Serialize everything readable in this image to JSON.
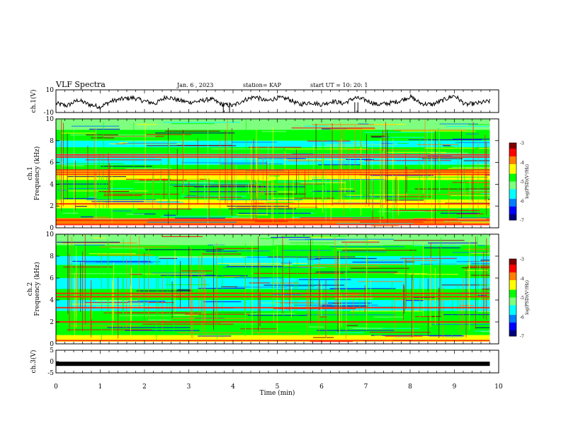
{
  "header": {
    "title": "VLF Spectra",
    "date": "Jan. 6 , 2023",
    "station": "station= KAP",
    "start_ut": "start UT =  10: 20: 1"
  },
  "colors": {
    "spectrum_scale": [
      "#00007f",
      "#0000ff",
      "#007fff",
      "#00ffff",
      "#7fff7f",
      "#00ff00",
      "#ffff00",
      "#ff7f00",
      "#ff0000",
      "#7f0000"
    ]
  },
  "chart_data": [
    {
      "type": "line",
      "name": "ch1-waveform",
      "ylabel": "ch.1(V)",
      "ylim": [
        -10,
        10
      ],
      "yticks": [
        "10",
        "-10"
      ],
      "description_series": "ch.1 voltage trace over time (min)",
      "x": [
        0.0,
        0.25,
        0.5,
        0.75,
        1.0,
        1.25,
        1.5,
        1.75,
        2.0,
        2.25,
        2.5,
        2.75,
        3.0,
        3.25,
        3.5,
        3.75,
        4.0,
        4.25,
        4.5,
        4.75,
        5.0,
        5.25,
        5.5,
        5.75,
        6.0,
        6.25,
        6.5,
        6.75,
        7.0,
        7.25,
        7.5,
        7.75,
        8.0,
        8.25,
        8.5,
        8.75,
        9.0,
        9.25,
        9.5,
        9.8
      ],
      "values": [
        -2,
        -4,
        1,
        -3,
        -5,
        0,
        2,
        3,
        0,
        -2,
        4,
        1,
        -1,
        0,
        2,
        -3,
        -4,
        1,
        4,
        0,
        3,
        2,
        -3,
        -1,
        -3,
        0,
        -2,
        3,
        1,
        -3,
        -2,
        0,
        4,
        -2,
        -3,
        1,
        5,
        -3,
        -2,
        0
      ]
    },
    {
      "type": "heatmap",
      "name": "ch1-spectrogram",
      "ylabel": "ch.1\nFrequency (kHz)",
      "ylim": [
        0,
        10
      ],
      "yticks": [
        "0",
        "2",
        "4",
        "6",
        "8",
        "10"
      ],
      "colorbar": {
        "label": "log(PSD)(V²/Hz)",
        "range": [
          -7,
          -3
        ],
        "ticks": [
          "-3",
          "-4",
          "-5",
          "-6",
          "-7"
        ]
      },
      "bands_khz": [
        {
          "from": 0.3,
          "to": 0.9,
          "level": 0.75
        },
        {
          "from": 0.9,
          "to": 1.8,
          "level": 0.55
        },
        {
          "from": 1.8,
          "to": 2.6,
          "level": 0.65
        },
        {
          "from": 2.6,
          "to": 3.4,
          "level": 0.55
        },
        {
          "from": 3.4,
          "to": 4.4,
          "level": 0.5
        },
        {
          "from": 4.4,
          "to": 5.3,
          "level": 0.7
        },
        {
          "from": 5.3,
          "to": 5.8,
          "level": 0.5
        },
        {
          "from": 5.8,
          "to": 6.8,
          "level": 0.35
        },
        {
          "from": 6.8,
          "to": 7.4,
          "level": 0.55
        },
        {
          "from": 7.4,
          "to": 8.0,
          "level": 0.3
        },
        {
          "from": 8.0,
          "to": 9.0,
          "level": 0.5
        },
        {
          "from": 9.0,
          "to": 10.0,
          "level": 0.45
        }
      ],
      "lines_khz": [
        0.3,
        0.7,
        2.2,
        4.9,
        5.1,
        5.3,
        6.5,
        6.7
      ]
    },
    {
      "type": "heatmap",
      "name": "ch2-spectrogram",
      "ylabel": "ch.2\nFrequency (kHz)",
      "ylim": [
        0,
        10
      ],
      "yticks": [
        "0",
        "2",
        "4",
        "6",
        "8",
        "10"
      ],
      "colorbar": {
        "label": "log(PSD)(V²/Hz)",
        "range": [
          -7,
          -3
        ],
        "ticks": [
          "-3",
          "-4",
          "-5",
          "-6",
          "-7"
        ]
      },
      "bands_khz": [
        {
          "from": 0.2,
          "to": 0.8,
          "level": 0.65
        },
        {
          "from": 0.8,
          "to": 1.8,
          "level": 0.55
        },
        {
          "from": 1.8,
          "to": 3.0,
          "level": 0.5
        },
        {
          "from": 3.0,
          "to": 4.0,
          "level": 0.3
        },
        {
          "from": 4.0,
          "to": 5.0,
          "level": 0.5
        },
        {
          "from": 5.0,
          "to": 6.0,
          "level": 0.28
        },
        {
          "from": 6.0,
          "to": 7.2,
          "level": 0.5
        },
        {
          "from": 7.2,
          "to": 8.0,
          "level": 0.3
        },
        {
          "from": 8.0,
          "to": 9.0,
          "level": 0.55
        },
        {
          "from": 9.0,
          "to": 10.0,
          "level": 0.45
        }
      ],
      "lines_khz": [
        0.3,
        2.0,
        3.3,
        4.3,
        4.6
      ]
    },
    {
      "type": "line",
      "name": "ch3-waveform",
      "ylabel": "ch.3(V)",
      "ylim": [
        -5,
        5
      ],
      "yticks": [
        "5",
        "0",
        "-5"
      ],
      "x": [
        0.0,
        9.8
      ],
      "values": [
        -1,
        -1
      ]
    }
  ],
  "x_axis": {
    "label": "Time (min)",
    "range": [
      0,
      10
    ],
    "ticks": [
      "0",
      "1",
      "2",
      "3",
      "4",
      "5",
      "6",
      "7",
      "8",
      "9",
      "10"
    ]
  }
}
